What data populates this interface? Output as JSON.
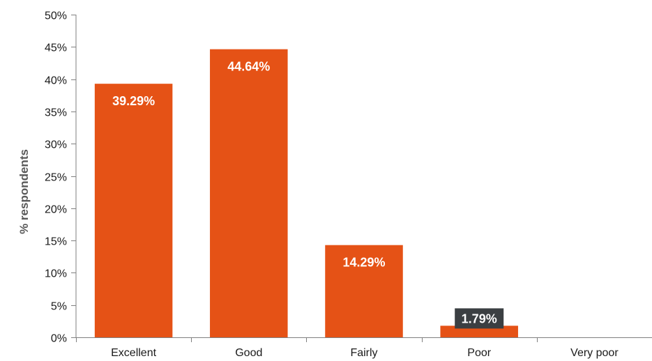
{
  "chart_data": {
    "type": "bar",
    "title": "",
    "xlabel": "",
    "ylabel": "% respondents",
    "categories": [
      "Excellent",
      "Good",
      "Fairly",
      "Poor",
      "Very poor"
    ],
    "values": [
      39.29,
      44.64,
      14.29,
      1.79,
      0
    ],
    "data_labels": [
      "39.29%",
      "44.64%",
      "14.29%",
      "1.79%",
      ""
    ],
    "ylim": [
      0,
      50
    ],
    "yticks": [
      0,
      5,
      10,
      15,
      20,
      25,
      30,
      35,
      40,
      45,
      50
    ],
    "ytick_labels": [
      "0%",
      "5%",
      "10%",
      "15%",
      "20%",
      "25%",
      "30%",
      "35%",
      "40%",
      "45%",
      "50%"
    ],
    "grid": false,
    "legend": "none",
    "colors": {
      "bar": "#e55216",
      "axis": "#7f7f7f",
      "label_on_bar": "#ffffff",
      "callout_bg": "#3b3f42",
      "callout_text": "#ffffff"
    }
  }
}
